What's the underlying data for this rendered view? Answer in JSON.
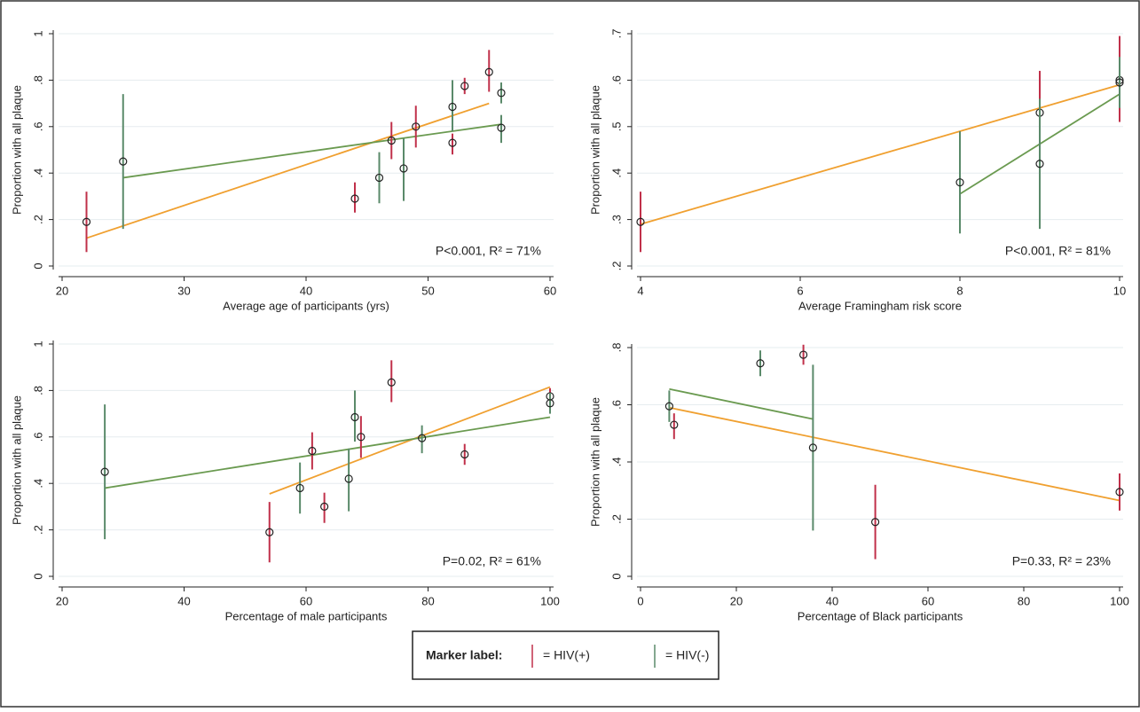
{
  "chart_data": [
    {
      "type": "scatter",
      "xlabel": "Average age of participants (yrs)",
      "ylabel": "Proportion with all plaque",
      "annotation": "P<0.001, R² = 71%",
      "xlim": [
        20,
        60
      ],
      "xticks": [
        20,
        30,
        40,
        50,
        60
      ],
      "ylim": [
        0,
        1
      ],
      "yticks": [
        0,
        {
          "value": 0.2,
          "label": ".2"
        },
        {
          "value": 0.4,
          "label": ".4"
        },
        {
          "value": 0.6,
          "label": ".6"
        },
        {
          "value": 0.8,
          "label": ".8"
        },
        1
      ],
      "grid": true,
      "series": [
        {
          "name": "= HIV(+)",
          "color": "#c0304a",
          "fit_color": "#f0a030",
          "x": [
            22,
            44,
            47,
            49,
            52,
            53,
            55
          ],
          "values": [
            0.19,
            0.29,
            0.54,
            0.6,
            0.53,
            0.775,
            0.835
          ],
          "ci_low": [
            0.06,
            0.23,
            0.46,
            0.51,
            0.48,
            0.74,
            0.75
          ],
          "ci_high": [
            0.32,
            0.36,
            0.62,
            0.69,
            0.57,
            0.81,
            0.93
          ],
          "fit_x": [
            22,
            55
          ],
          "fit_y": [
            0.12,
            0.7
          ]
        },
        {
          "name": "= HIV(-)",
          "color": "#5a8a6a",
          "fit_color": "#6a9a50",
          "x": [
            25,
            46,
            48,
            52,
            56,
            56
          ],
          "values": [
            0.45,
            0.38,
            0.42,
            0.685,
            0.745,
            0.595
          ],
          "ci_low": [
            0.16,
            0.27,
            0.28,
            0.58,
            0.7,
            0.53
          ],
          "ci_high": [
            0.74,
            0.49,
            0.55,
            0.8,
            0.79,
            0.65
          ],
          "fit_x": [
            25,
            56
          ],
          "fit_y": [
            0.38,
            0.61
          ]
        }
      ]
    },
    {
      "type": "scatter",
      "xlabel": "Average Framingham risk score",
      "ylabel": "Proportion with all plaque",
      "annotation": "P<0.001, R² = 81%",
      "xlim": [
        4,
        10
      ],
      "xticks": [
        4,
        6,
        8,
        10
      ],
      "ylim": [
        0.2,
        0.7
      ],
      "yticks": [
        {
          "value": 0.2,
          "label": ".2"
        },
        {
          "value": 0.3,
          "label": ".3"
        },
        {
          "value": 0.4,
          "label": ".4"
        },
        {
          "value": 0.5,
          "label": ".5"
        },
        {
          "value": 0.6,
          "label": ".6"
        },
        {
          "value": 0.7,
          "label": ".7"
        }
      ],
      "grid": true,
      "series": [
        {
          "name": "= HIV(+)",
          "color": "#c0304a",
          "fit_color": "#f0a030",
          "x": [
            4,
            9,
            10
          ],
          "values": [
            0.295,
            0.53,
            0.6
          ],
          "ci_low": [
            0.23,
            0.44,
            0.51
          ],
          "ci_high": [
            0.36,
            0.62,
            0.695
          ],
          "fit_x": [
            4,
            10
          ],
          "fit_y": [
            0.29,
            0.59
          ]
        },
        {
          "name": "= HIV(-)",
          "color": "#5a8a6a",
          "fit_color": "#6a9a50",
          "x": [
            8,
            9,
            10
          ],
          "values": [
            0.38,
            0.42,
            0.595
          ],
          "ci_low": [
            0.27,
            0.28,
            0.54
          ],
          "ci_high": [
            0.49,
            0.56,
            0.65
          ],
          "fit_x": [
            8,
            10
          ],
          "fit_y": [
            0.355,
            0.57
          ]
        }
      ]
    },
    {
      "type": "scatter",
      "xlabel": "Percentage of male participants",
      "ylabel": "Proportion with all plaque",
      "annotation": "P=0.02, R² = 61%",
      "xlim": [
        20,
        100
      ],
      "xticks": [
        20,
        40,
        60,
        80,
        100
      ],
      "ylim": [
        0,
        1
      ],
      "yticks": [
        0,
        {
          "value": 0.2,
          "label": ".2"
        },
        {
          "value": 0.4,
          "label": ".4"
        },
        {
          "value": 0.6,
          "label": ".6"
        },
        {
          "value": 0.8,
          "label": ".8"
        },
        1
      ],
      "grid": true,
      "series": [
        {
          "name": "= HIV(+)",
          "color": "#c0304a",
          "fit_color": "#f0a030",
          "x": [
            54,
            61,
            63,
            69,
            74,
            86,
            100
          ],
          "values": [
            0.19,
            0.54,
            0.3,
            0.6,
            0.835,
            0.525,
            0.775
          ],
          "ci_low": [
            0.06,
            0.46,
            0.23,
            0.51,
            0.75,
            0.48,
            0.74
          ],
          "ci_high": [
            0.32,
            0.62,
            0.36,
            0.69,
            0.93,
            0.57,
            0.81
          ],
          "fit_x": [
            54,
            100
          ],
          "fit_y": [
            0.355,
            0.815
          ]
        },
        {
          "name": "= HIV(-)",
          "color": "#5a8a6a",
          "fit_color": "#6a9a50",
          "x": [
            27,
            59,
            67,
            68,
            79,
            100
          ],
          "values": [
            0.45,
            0.38,
            0.42,
            0.685,
            0.595,
            0.745
          ],
          "ci_low": [
            0.16,
            0.27,
            0.28,
            0.58,
            0.53,
            0.7
          ],
          "ci_high": [
            0.74,
            0.49,
            0.55,
            0.8,
            0.65,
            0.79
          ],
          "fit_x": [
            27,
            100
          ],
          "fit_y": [
            0.38,
            0.685
          ]
        }
      ]
    },
    {
      "type": "scatter",
      "xlabel": "Percentage of Black participants",
      "ylabel": "Proportion with all plaque",
      "annotation": "P=0.33, R² = 23%",
      "xlim": [
        0,
        100
      ],
      "xticks": [
        0,
        20,
        40,
        60,
        80,
        100
      ],
      "ylim": [
        0,
        0.8
      ],
      "yticks": [
        0,
        {
          "value": 0.2,
          "label": ".2"
        },
        {
          "value": 0.4,
          "label": ".4"
        },
        {
          "value": 0.6,
          "label": ".6"
        },
        {
          "value": 0.8,
          "label": ".8"
        }
      ],
      "grid": true,
      "series": [
        {
          "name": "= HIV(+)",
          "color": "#c0304a",
          "fit_color": "#f0a030",
          "x": [
            49,
            7,
            34,
            100
          ],
          "values": [
            0.19,
            0.53,
            0.775,
            0.295
          ],
          "ci_low": [
            0.06,
            0.48,
            0.74,
            0.23
          ],
          "ci_high": [
            0.32,
            0.57,
            0.81,
            0.36
          ],
          "fit_x": [
            6,
            100
          ],
          "fit_y": [
            0.59,
            0.265
          ]
        },
        {
          "name": "= HIV(-)",
          "color": "#5a8a6a",
          "fit_color": "#6a9a50",
          "x": [
            6,
            25,
            36
          ],
          "values": [
            0.595,
            0.745,
            0.45
          ],
          "ci_low": [
            0.54,
            0.7,
            0.16
          ],
          "ci_high": [
            0.65,
            0.79,
            0.74
          ],
          "fit_x": [
            6,
            36
          ],
          "fit_y": [
            0.655,
            0.55
          ]
        }
      ]
    }
  ],
  "legend_title": "Marker label:"
}
